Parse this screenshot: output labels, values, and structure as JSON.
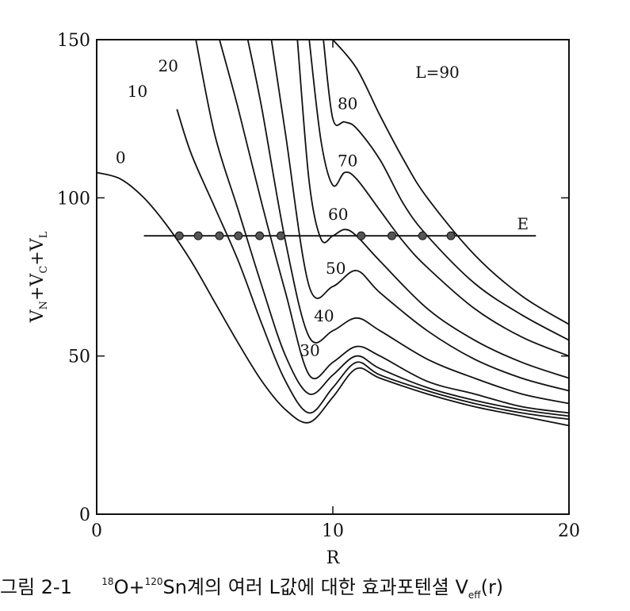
{
  "caption": {
    "fig_no": "그림 2-1",
    "iso1_mass": "18",
    "iso1_elem": "O",
    "plus": "+",
    "iso2_mass": "120",
    "iso2_elem": "Sn",
    "text_mid": "계의 여러 L값에 대한 효과포텐셜",
    "veff_main": "V",
    "veff_sub": "eff",
    "veff_arg": "(r)"
  },
  "chart_data": {
    "type": "line",
    "title": "",
    "xlabel": "R",
    "ylabel_parts": [
      "V",
      "N",
      "+V",
      "C",
      "+V",
      "L"
    ],
    "xlim": [
      0,
      20
    ],
    "ylim": [
      0,
      150
    ],
    "x_ticks": [
      0,
      10,
      20
    ],
    "y_ticks": [
      0,
      50,
      100,
      150
    ],
    "grid": false,
    "series": [
      {
        "name": "0",
        "x": [
          0,
          1,
          2,
          3,
          4,
          5,
          6,
          7,
          8,
          9,
          10,
          11,
          12,
          14,
          16,
          18,
          20
        ],
        "y": [
          108,
          106,
          100,
          91,
          80,
          67,
          54,
          42,
          33,
          29,
          37,
          46,
          43,
          38,
          34,
          31,
          28
        ]
      },
      {
        "name": "10",
        "x": [
          3.4,
          4,
          5,
          6,
          7,
          8,
          9,
          10,
          11,
          12,
          14,
          16,
          18,
          20
        ],
        "y": [
          128,
          114,
          97,
          80,
          60,
          42,
          32,
          40,
          48,
          44,
          39,
          35,
          32,
          30
        ]
      },
      {
        "name": "20",
        "x": [
          4.2,
          5,
          6,
          7,
          8,
          9,
          10,
          11,
          12,
          14,
          16,
          18,
          20
        ],
        "y": [
          150,
          120,
          96,
          72,
          50,
          38,
          44,
          50,
          46,
          40,
          36,
          33,
          31
        ]
      },
      {
        "name": "30",
        "x": [
          5.2,
          6,
          7,
          8,
          9,
          10,
          11,
          12,
          14,
          16,
          18,
          20
        ],
        "y": [
          150,
          128,
          98,
          70,
          44,
          48,
          53,
          50,
          42,
          38,
          34,
          32
        ]
      },
      {
        "name": "40",
        "x": [
          6.4,
          7,
          8,
          9,
          10,
          11,
          12,
          14,
          16,
          18,
          20
        ],
        "y": [
          150,
          128,
          86,
          56,
          58,
          62,
          58,
          49,
          43,
          38,
          35
        ]
      },
      {
        "name": "50",
        "x": [
          7.4,
          8,
          9,
          10,
          11,
          12,
          14,
          16,
          18,
          20
        ],
        "y": [
          150,
          120,
          72,
          72,
          77,
          70,
          58,
          49,
          43,
          39
        ]
      },
      {
        "name": "60",
        "x": [
          8.5,
          9,
          9.5,
          10,
          10.5,
          11,
          12,
          14,
          16,
          18,
          20
        ],
        "y": [
          150,
          105,
          87,
          88,
          90,
          88,
          80,
          65,
          55,
          48,
          43
        ]
      },
      {
        "name": "70",
        "x": [
          9,
          9.5,
          10,
          10.5,
          11,
          12,
          13,
          14,
          16,
          18,
          20
        ],
        "y": [
          150,
          118,
          104,
          108,
          106,
          96,
          86,
          78,
          65,
          56,
          50
        ]
      },
      {
        "name": "80",
        "x": [
          9.6,
          10,
          10.5,
          11,
          12,
          13,
          14,
          16,
          18,
          20
        ],
        "y": [
          150,
          125,
          124,
          122,
          112,
          98,
          88,
          73,
          63,
          55
        ]
      },
      {
        "name": "L=90",
        "x": [
          10,
          11,
          12,
          13,
          14,
          16,
          18,
          20
        ],
        "y": [
          150,
          141,
          126,
          112,
          100,
          82,
          69,
          60
        ]
      },
      {
        "name": "E",
        "x": [
          2,
          18.6
        ],
        "y": [
          88,
          88
        ]
      }
    ],
    "intersection_points": [
      {
        "x": 3.5,
        "y": 88
      },
      {
        "x": 4.3,
        "y": 88
      },
      {
        "x": 5.2,
        "y": 88
      },
      {
        "x": 6.0,
        "y": 88
      },
      {
        "x": 6.9,
        "y": 88
      },
      {
        "x": 7.8,
        "y": 88
      },
      {
        "x": 11.2,
        "y": 88
      },
      {
        "x": 12.5,
        "y": 88
      },
      {
        "x": 13.8,
        "y": 88
      },
      {
        "x": 15.0,
        "y": 88
      }
    ],
    "annotations": [
      {
        "text": "0",
        "x": 0.8,
        "y": 111
      },
      {
        "text": "10",
        "x": 1.3,
        "y": 132
      },
      {
        "text": "20",
        "x": 2.6,
        "y": 140
      },
      {
        "text": "30",
        "x": 8.6,
        "y": 50
      },
      {
        "text": "40",
        "x": 9.2,
        "y": 61
      },
      {
        "text": "50",
        "x": 9.7,
        "y": 76
      },
      {
        "text": "60",
        "x": 9.8,
        "y": 93
      },
      {
        "text": "70",
        "x": 10.2,
        "y": 110
      },
      {
        "text": "80",
        "x": 10.2,
        "y": 128
      },
      {
        "text": "L=90",
        "x": 13.5,
        "y": 138
      },
      {
        "text": "E",
        "x": 17.8,
        "y": 90
      }
    ]
  }
}
